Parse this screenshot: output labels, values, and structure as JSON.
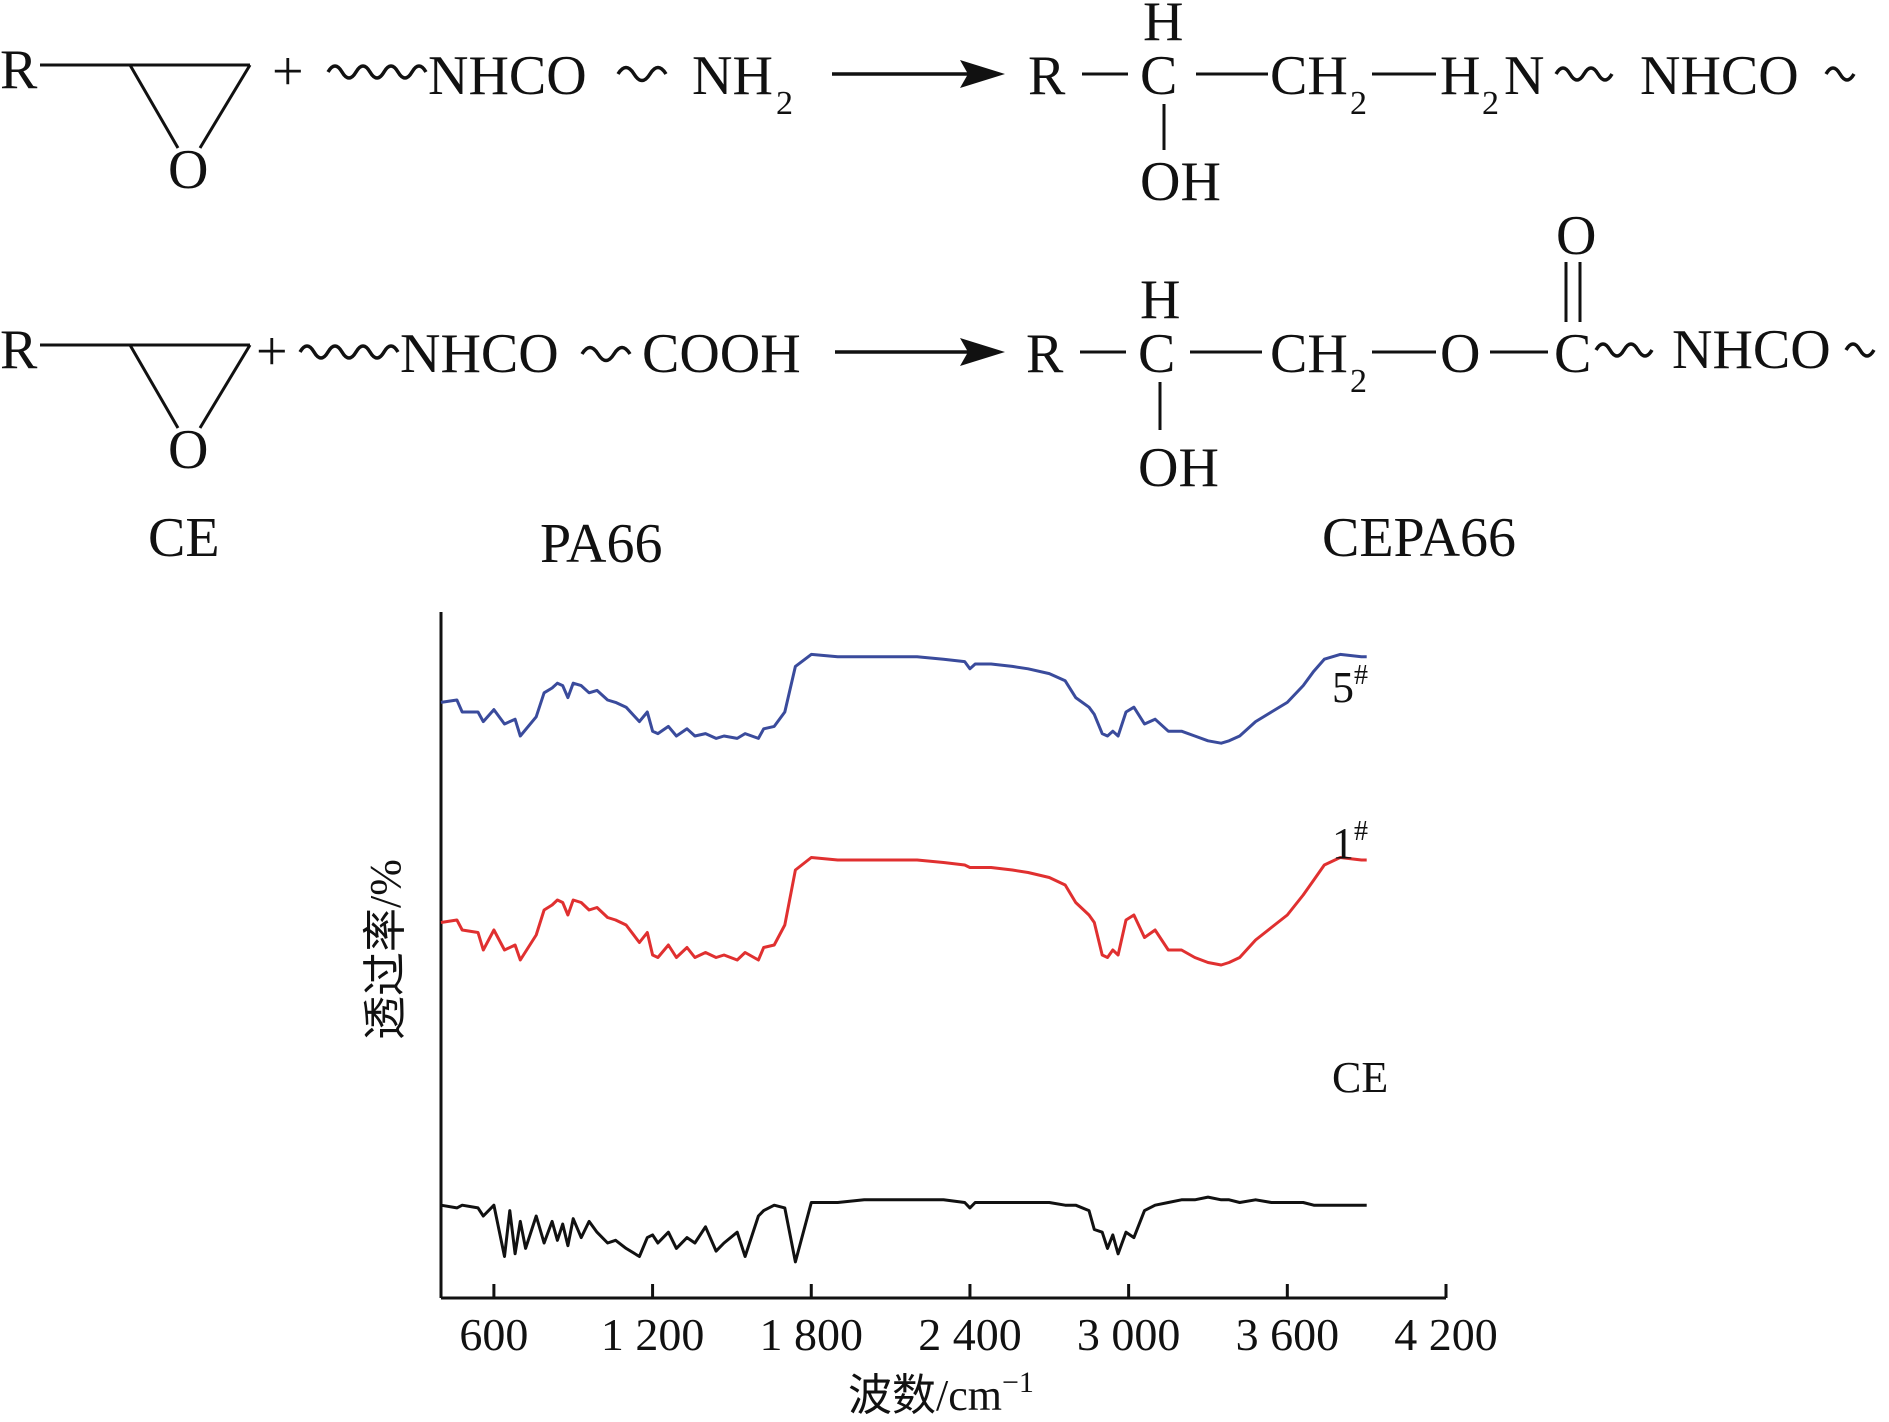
{
  "reaction": {
    "row1": {
      "reactant_R": "R",
      "epoxide_O": "O",
      "plus": "+",
      "amide": "NHCO",
      "amine_N": "NH",
      "amine_sub": "2",
      "prod_R": "R",
      "prod_H": "H",
      "prod_C": "C",
      "prod_CH": "CH",
      "prod_CH_sub": "2",
      "prod_H2N_H": "H",
      "prod_H2N_sub": "2",
      "prod_H2N_N": "N",
      "prod_amide": "NHCO",
      "prod_OH": "OH"
    },
    "row2": {
      "reactant_R": "R",
      "epoxide_O": "O",
      "plus": "+",
      "amide": "NHCO",
      "acid": "COOH",
      "prod_R": "R",
      "prod_H": "H",
      "prod_C": "C",
      "prod_CH": "CH",
      "prod_CH_sub": "2",
      "prod_O": "O",
      "prod_C2": "C",
      "prod_carbonyl_O": "O",
      "prod_amide": "NHCO",
      "prod_OH": "OH"
    },
    "names": {
      "ce": "CE",
      "pa66": "PA66",
      "cepa66": "CEPA66"
    }
  },
  "chart_data": {
    "type": "line",
    "xlabel": "波数/cm",
    "xlabel_sup": "−1",
    "ylabel": "透过率/%",
    "xlim": [
      400,
      4200
    ],
    "ylim": [
      0,
      100
    ],
    "xticks": [
      600,
      1200,
      1800,
      2400,
      3000,
      3600,
      4200
    ],
    "xtick_labels": [
      "600",
      "1 200",
      "1 800",
      "2 400",
      "3 000",
      "3 600",
      "4 200"
    ],
    "series": [
      {
        "name": "5",
        "name_sup": "#",
        "color": "#3a4b9c",
        "x": [
          400,
          460,
          480,
          540,
          560,
          600,
          640,
          680,
          700,
          760,
          790,
          820,
          840,
          860,
          880,
          900,
          930,
          960,
          990,
          1030,
          1060,
          1100,
          1150,
          1180,
          1200,
          1220,
          1260,
          1290,
          1330,
          1360,
          1400,
          1440,
          1470,
          1520,
          1550,
          1600,
          1620,
          1660,
          1700,
          1740,
          1800,
          1900,
          2000,
          2100,
          2200,
          2300,
          2380,
          2400,
          2420,
          2480,
          2560,
          2620,
          2700,
          2760,
          2800,
          2850,
          2870,
          2900,
          2920,
          2940,
          2960,
          2990,
          3020,
          3060,
          3100,
          3150,
          3200,
          3250,
          3300,
          3350,
          3380,
          3420,
          3480,
          3540,
          3600,
          3660,
          3700,
          3740,
          3800,
          3880,
          3900
        ],
        "y": [
          74,
          75,
          70,
          70,
          66,
          71,
          65,
          67,
          60,
          68,
          78,
          80,
          82,
          81,
          76,
          82,
          81,
          78,
          79,
          75,
          74,
          72,
          66,
          70,
          62,
          61,
          64,
          60,
          63,
          60,
          61,
          59,
          60,
          59,
          61,
          59,
          63,
          64,
          70,
          89,
          94,
          93,
          93,
          93,
          93,
          92,
          91,
          88,
          90,
          90,
          89,
          88,
          86,
          83,
          76,
          72,
          69,
          61,
          60,
          62,
          60,
          70,
          72,
          65,
          67,
          62,
          62,
          60,
          58,
          57,
          58,
          60,
          66,
          70,
          74,
          81,
          87,
          92,
          94,
          93,
          93
        ]
      },
      {
        "name": "1",
        "name_sup": "#",
        "color": "#e03030",
        "x": [
          400,
          460,
          480,
          540,
          560,
          600,
          640,
          680,
          700,
          760,
          790,
          820,
          840,
          860,
          880,
          900,
          930,
          960,
          990,
          1030,
          1060,
          1100,
          1150,
          1180,
          1200,
          1220,
          1260,
          1290,
          1330,
          1360,
          1400,
          1440,
          1470,
          1520,
          1550,
          1600,
          1620,
          1660,
          1700,
          1740,
          1800,
          1900,
          2000,
          2100,
          2200,
          2300,
          2380,
          2400,
          2420,
          2480,
          2560,
          2620,
          2700,
          2760,
          2800,
          2850,
          2870,
          2900,
          2920,
          2940,
          2960,
          2990,
          3020,
          3060,
          3100,
          3150,
          3200,
          3250,
          3300,
          3350,
          3380,
          3420,
          3480,
          3540,
          3600,
          3660,
          3700,
          3740,
          3800,
          3880,
          3900
        ],
        "y": [
          47,
          48,
          44,
          43,
          36,
          44,
          36,
          38,
          32,
          42,
          52,
          54,
          56,
          55,
          50,
          56,
          55,
          52,
          53,
          49,
          48,
          46,
          39,
          43,
          34,
          33,
          38,
          33,
          37,
          33,
          35,
          33,
          34,
          32,
          35,
          32,
          37,
          38,
          46,
          68,
          73,
          72,
          72,
          72,
          72,
          71,
          70,
          69,
          69,
          69,
          68,
          67,
          65,
          62,
          55,
          50,
          47,
          34,
          33,
          36,
          34,
          48,
          50,
          41,
          44,
          36,
          36,
          33,
          31,
          30,
          31,
          33,
          40,
          45,
          50,
          58,
          64,
          70,
          73,
          72,
          72
        ]
      },
      {
        "name": "CE",
        "color": "#111111",
        "x": [
          400,
          460,
          480,
          540,
          560,
          600,
          640,
          660,
          680,
          700,
          720,
          760,
          790,
          820,
          840,
          860,
          880,
          900,
          930,
          960,
          990,
          1030,
          1060,
          1100,
          1150,
          1180,
          1200,
          1220,
          1260,
          1290,
          1330,
          1360,
          1400,
          1440,
          1470,
          1520,
          1550,
          1600,
          1620,
          1660,
          1700,
          1740,
          1800,
          1900,
          2000,
          2100,
          2200,
          2300,
          2380,
          2400,
          2420,
          2480,
          2560,
          2620,
          2700,
          2760,
          2800,
          2850,
          2870,
          2900,
          2920,
          2940,
          2960,
          2990,
          3020,
          3060,
          3100,
          3150,
          3200,
          3250,
          3300,
          3350,
          3380,
          3420,
          3480,
          3540,
          3600,
          3660,
          3700,
          3740,
          3800,
          3880,
          3900
        ],
        "y": [
          24,
          23,
          24,
          23,
          20,
          24,
          5,
          22,
          6,
          18,
          8,
          20,
          10,
          18,
          11,
          17,
          9,
          19,
          12,
          18,
          14,
          10,
          11,
          8,
          5,
          12,
          13,
          10,
          14,
          8,
          12,
          10,
          16,
          7,
          10,
          14,
          5,
          20,
          22,
          24,
          23,
          3,
          25,
          25,
          26,
          26,
          26,
          26,
          25,
          23,
          25,
          25,
          25,
          25,
          25,
          24,
          24,
          22,
          15,
          14,
          8,
          13,
          6,
          14,
          12,
          22,
          24,
          25,
          26,
          26,
          27,
          26,
          26,
          25,
          26,
          25,
          25,
          25,
          24,
          24,
          24,
          24,
          24
        ]
      }
    ],
    "series_labels": [
      {
        "text": "5",
        "sup": "#"
      },
      {
        "text": "1",
        "sup": "#"
      },
      {
        "text": "CE"
      }
    ]
  }
}
